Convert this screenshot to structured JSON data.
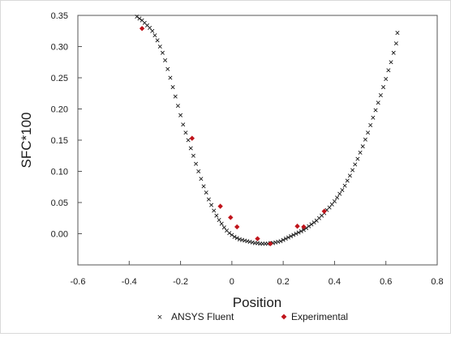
{
  "chart_data": {
    "type": "scatter",
    "title": "",
    "xlabel": "Position",
    "ylabel": "SFC*100",
    "xlim": [
      -0.6,
      0.8
    ],
    "ylim": [
      -0.05,
      0.35
    ],
    "xticks": [
      "-0.6",
      "-0.4",
      "-0.2",
      "0",
      "0.2",
      "0.4",
      "0.6",
      "0.8"
    ],
    "yticks": [
      "0.00",
      "0.05",
      "0.10",
      "0.15",
      "0.20",
      "0.25",
      "0.30",
      "0.35"
    ],
    "grid": false,
    "legend_position": "bottom",
    "series": [
      {
        "name": "ANSYS Fluent",
        "marker": "x",
        "color": "#1a1a1a",
        "points": [
          [
            -0.37,
            0.348
          ],
          [
            -0.36,
            0.345
          ],
          [
            -0.35,
            0.342
          ],
          [
            -0.34,
            0.338
          ],
          [
            -0.33,
            0.334
          ],
          [
            -0.32,
            0.33
          ],
          [
            -0.31,
            0.325
          ],
          [
            -0.3,
            0.318
          ],
          [
            -0.29,
            0.31
          ],
          [
            -0.28,
            0.3
          ],
          [
            -0.27,
            0.29
          ],
          [
            -0.26,
            0.278
          ],
          [
            -0.25,
            0.264
          ],
          [
            -0.24,
            0.25
          ],
          [
            -0.23,
            0.235
          ],
          [
            -0.22,
            0.22
          ],
          [
            -0.21,
            0.205
          ],
          [
            -0.2,
            0.19
          ],
          [
            -0.19,
            0.175
          ],
          [
            -0.18,
            0.162
          ],
          [
            -0.17,
            0.15
          ],
          [
            -0.16,
            0.137
          ],
          [
            -0.15,
            0.125
          ],
          [
            -0.14,
            0.112
          ],
          [
            -0.13,
            0.1
          ],
          [
            -0.12,
            0.088
          ],
          [
            -0.11,
            0.076
          ],
          [
            -0.1,
            0.066
          ],
          [
            -0.09,
            0.055
          ],
          [
            -0.08,
            0.046
          ],
          [
            -0.07,
            0.037
          ],
          [
            -0.06,
            0.029
          ],
          [
            -0.05,
            0.022
          ],
          [
            -0.04,
            0.016
          ],
          [
            -0.03,
            0.01
          ],
          [
            -0.02,
            0.005
          ],
          [
            -0.01,
            0.001
          ],
          [
            0.0,
            -0.002
          ],
          [
            0.01,
            -0.005
          ],
          [
            0.02,
            -0.007
          ],
          [
            0.03,
            -0.009
          ],
          [
            0.04,
            -0.01
          ],
          [
            0.05,
            -0.011
          ],
          [
            0.06,
            -0.012
          ],
          [
            0.07,
            -0.013
          ],
          [
            0.08,
            -0.014
          ],
          [
            0.09,
            -0.015
          ],
          [
            0.1,
            -0.015
          ],
          [
            0.11,
            -0.016
          ],
          [
            0.12,
            -0.016
          ],
          [
            0.13,
            -0.016
          ],
          [
            0.14,
            -0.016
          ],
          [
            0.15,
            -0.015
          ],
          [
            0.16,
            -0.015
          ],
          [
            0.17,
            -0.014
          ],
          [
            0.18,
            -0.013
          ],
          [
            0.19,
            -0.012
          ],
          [
            0.2,
            -0.01
          ],
          [
            0.21,
            -0.008
          ],
          [
            0.22,
            -0.006
          ],
          [
            0.23,
            -0.004
          ],
          [
            0.24,
            -0.002
          ],
          [
            0.25,
            0.0
          ],
          [
            0.26,
            0.002
          ],
          [
            0.27,
            0.004
          ],
          [
            0.28,
            0.006
          ],
          [
            0.29,
            0.009
          ],
          [
            0.3,
            0.012
          ],
          [
            0.31,
            0.015
          ],
          [
            0.32,
            0.018
          ],
          [
            0.33,
            0.021
          ],
          [
            0.34,
            0.025
          ],
          [
            0.35,
            0.029
          ],
          [
            0.36,
            0.033
          ],
          [
            0.37,
            0.038
          ],
          [
            0.38,
            0.042
          ],
          [
            0.39,
            0.047
          ],
          [
            0.4,
            0.052
          ],
          [
            0.41,
            0.058
          ],
          [
            0.42,
            0.064
          ],
          [
            0.43,
            0.07
          ],
          [
            0.44,
            0.077
          ],
          [
            0.45,
            0.085
          ],
          [
            0.46,
            0.093
          ],
          [
            0.47,
            0.102
          ],
          [
            0.48,
            0.111
          ],
          [
            0.49,
            0.12
          ],
          [
            0.5,
            0.13
          ],
          [
            0.51,
            0.14
          ],
          [
            0.52,
            0.151
          ],
          [
            0.53,
            0.162
          ],
          [
            0.54,
            0.174
          ],
          [
            0.55,
            0.186
          ],
          [
            0.56,
            0.198
          ],
          [
            0.57,
            0.21
          ],
          [
            0.58,
            0.222
          ],
          [
            0.59,
            0.235
          ],
          [
            0.6,
            0.248
          ],
          [
            0.61,
            0.262
          ],
          [
            0.62,
            0.275
          ],
          [
            0.63,
            0.29
          ],
          [
            0.64,
            0.305
          ],
          [
            0.645,
            0.322
          ]
        ]
      },
      {
        "name": "Experimental",
        "marker": "diamond",
        "color": "#c0141b",
        "points": [
          [
            -0.35,
            0.329
          ],
          [
            -0.155,
            0.153
          ],
          [
            -0.045,
            0.044
          ],
          [
            -0.005,
            0.026
          ],
          [
            0.02,
            0.011
          ],
          [
            0.1,
            -0.008
          ],
          [
            0.15,
            -0.016
          ],
          [
            0.255,
            0.012
          ],
          [
            0.28,
            0.011
          ],
          [
            0.36,
            0.036
          ]
        ]
      }
    ]
  }
}
